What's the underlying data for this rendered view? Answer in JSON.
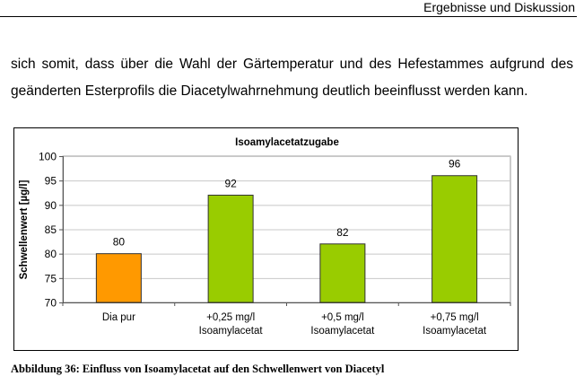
{
  "header": {
    "section_title": "Ergebnisse und Diskussion"
  },
  "body": {
    "paragraph": "sich somit, dass über die Wahl der Gärtemperatur und des Hefestammes aufgrund des geänderten Esterprofils die Diacetylwahrnehmung deutlich beeinflusst werden kann."
  },
  "caption": "Abbildung 36: Einfluss von Isoamylacetat auf den Schwellenwert von Diacetyl",
  "chart_data": {
    "type": "bar",
    "title": "Isoamylacetatzugabe",
    "xlabel": "",
    "ylabel": "Schwellenwert [µg/l]",
    "ylim": [
      70,
      100
    ],
    "yticks": [
      70,
      75,
      80,
      85,
      90,
      95,
      100
    ],
    "grid": true,
    "categories": [
      [
        "Dia pur"
      ],
      [
        "+0,25 mg/l",
        "Isoamylacetat"
      ],
      [
        "+0,5 mg/l",
        "Isoamylacetat"
      ],
      [
        "+0,75 mg/l",
        "Isoamylacetat"
      ]
    ],
    "values": [
      80,
      92,
      82,
      96
    ],
    "data_labels": [
      "80",
      "92",
      "82",
      "96"
    ],
    "colors": [
      "#FF9900",
      "#99CC00",
      "#99CC00",
      "#99CC00"
    ]
  }
}
